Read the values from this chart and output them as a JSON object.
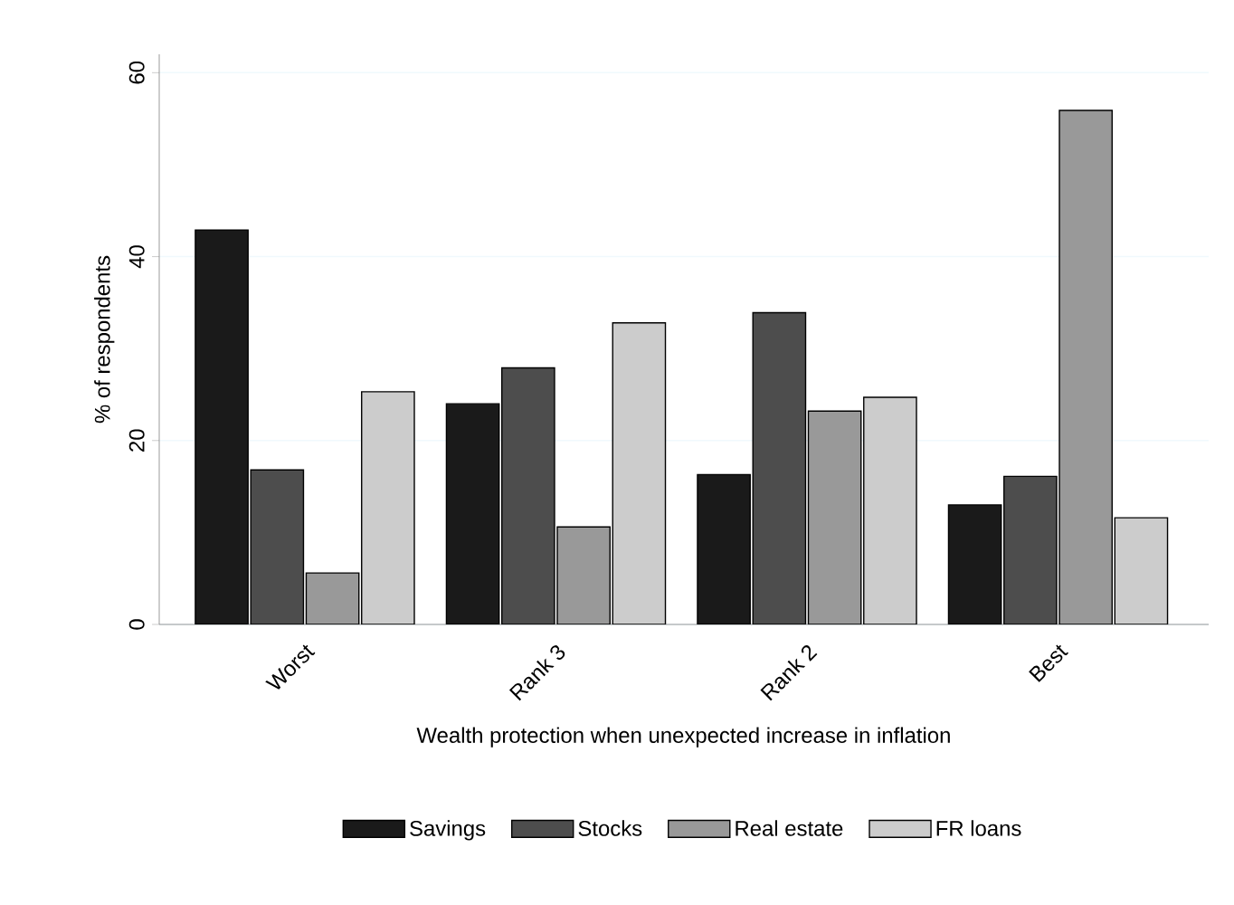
{
  "chart_data": {
    "type": "bar",
    "xlabel": "Wealth protection when unexpected increase in inflation",
    "ylabel": "% of respondents",
    "categories": [
      "Worst",
      "Rank 3",
      "Rank 2",
      "Best"
    ],
    "series": [
      {
        "name": "Savings",
        "color": "#1a1a1a",
        "values": [
          42.9,
          24.0,
          16.3,
          13.0
        ]
      },
      {
        "name": "Stocks",
        "color": "#4d4d4d",
        "values": [
          16.8,
          27.9,
          33.9,
          16.1
        ]
      },
      {
        "name": "Real estate",
        "color": "#999999",
        "values": [
          5.6,
          10.6,
          23.2,
          55.9
        ]
      },
      {
        "name": "FR loans",
        "color": "#cccccc",
        "values": [
          25.3,
          32.8,
          24.7,
          11.6
        ]
      }
    ],
    "ylim": [
      0,
      62
    ],
    "yticks": [
      0,
      20,
      40,
      60
    ],
    "grid": "y",
    "legend": "bottom"
  }
}
